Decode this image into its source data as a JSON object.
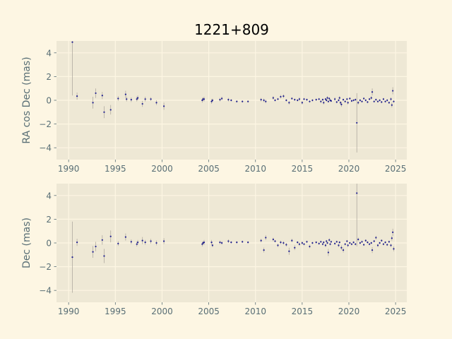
{
  "chart_data": {
    "type": "scatter",
    "title": "1221+809",
    "style": {
      "figure_bg": "#fdf6e3",
      "axes_bg": "#eee8d5",
      "grid": "#fdf6e3",
      "point": "#1f1f8f",
      "errorbar": "#b0aaa0",
      "text": "#586e75"
    },
    "grid": true,
    "xlim": [
      1988.7,
      2026.2
    ],
    "xticks": [
      1990,
      1995,
      2000,
      2005,
      2010,
      2015,
      2020,
      2025
    ],
    "panels": [
      {
        "ylabel": "RA cos Dec (mas)",
        "ylim": [
          -5,
          5
        ],
        "yticks": [
          -4,
          -2,
          0,
          2,
          4
        ],
        "points": [
          [
            1990.4,
            4.9,
            4.5
          ],
          [
            1990.9,
            0.35,
            0.3
          ],
          [
            1992.6,
            -0.2,
            0.5
          ],
          [
            1992.9,
            0.6,
            0.4
          ],
          [
            1993.6,
            0.4,
            0.3
          ],
          [
            1993.8,
            -1.0,
            0.5
          ],
          [
            1994.5,
            -0.8,
            0.4
          ],
          [
            1995.3,
            0.15,
            0.2
          ],
          [
            1996.1,
            0.5,
            0.3
          ],
          [
            1996.2,
            0.1,
            0.2
          ],
          [
            1996.7,
            0.05,
            0.2
          ],
          [
            1997.3,
            0.1,
            0.2
          ],
          [
            1997.4,
            0.2,
            0.2
          ],
          [
            1997.9,
            -0.3,
            0.25
          ],
          [
            1998.2,
            0.1,
            0.2
          ],
          [
            1998.8,
            0.1,
            0.15
          ],
          [
            1999.4,
            -0.2,
            0.2
          ],
          [
            2000.2,
            -0.5,
            0.3
          ],
          [
            2004.3,
            0.0,
            0.2
          ],
          [
            2004.4,
            0.1,
            0.15
          ],
          [
            2004.5,
            0.1,
            0.2
          ],
          [
            2005.3,
            -0.1,
            0.2
          ],
          [
            2005.4,
            0.0,
            0.15
          ],
          [
            2006.2,
            0.05,
            0.15
          ],
          [
            2006.4,
            0.15,
            0.15
          ],
          [
            2007.1,
            0.05,
            0.15
          ],
          [
            2007.4,
            0.0,
            0.1
          ],
          [
            2008.0,
            -0.1,
            0.1
          ],
          [
            2008.6,
            -0.1,
            0.1
          ],
          [
            2009.2,
            -0.1,
            0.1
          ],
          [
            2010.6,
            0.05,
            0.15
          ],
          [
            2010.9,
            0.0,
            0.15
          ],
          [
            2011.1,
            -0.1,
            0.15
          ],
          [
            2011.9,
            0.2,
            0.15
          ],
          [
            2012.1,
            0.0,
            0.1
          ],
          [
            2012.4,
            0.1,
            0.1
          ],
          [
            2012.7,
            0.3,
            0.15
          ],
          [
            2013.0,
            0.35,
            0.15
          ],
          [
            2013.3,
            0.0,
            0.1
          ],
          [
            2013.6,
            -0.2,
            0.15
          ],
          [
            2013.9,
            0.15,
            0.1
          ],
          [
            2014.2,
            0.05,
            0.1
          ],
          [
            2014.5,
            0.0,
            0.1
          ],
          [
            2014.7,
            0.1,
            0.15
          ],
          [
            2015.0,
            -0.2,
            0.15
          ],
          [
            2015.2,
            0.1,
            0.1
          ],
          [
            2015.5,
            0.05,
            0.1
          ],
          [
            2015.8,
            -0.1,
            0.1
          ],
          [
            2016.1,
            0.0,
            0.1
          ],
          [
            2016.5,
            0.05,
            0.1
          ],
          [
            2016.8,
            0.1,
            0.1
          ],
          [
            2017.0,
            -0.1,
            0.15
          ],
          [
            2017.2,
            0.05,
            0.1
          ],
          [
            2017.3,
            -0.2,
            0.15
          ],
          [
            2017.5,
            0.1,
            0.1
          ],
          [
            2017.6,
            0.0,
            0.1
          ],
          [
            2017.7,
            0.2,
            0.15
          ],
          [
            2017.8,
            -0.1,
            0.1
          ],
          [
            2017.9,
            0.15,
            0.1
          ],
          [
            2018.0,
            0.0,
            0.1
          ],
          [
            2018.1,
            -0.05,
            0.1
          ],
          [
            2018.5,
            0.1,
            0.15
          ],
          [
            2018.7,
            -0.15,
            0.1
          ],
          [
            2018.9,
            0.0,
            0.1
          ],
          [
            2019.0,
            0.2,
            0.15
          ],
          [
            2019.1,
            -0.2,
            0.15
          ],
          [
            2019.2,
            -0.35,
            0.2
          ],
          [
            2019.4,
            0.05,
            0.1
          ],
          [
            2019.6,
            -0.1,
            0.1
          ],
          [
            2019.8,
            0.1,
            0.1
          ],
          [
            2019.9,
            -0.2,
            0.15
          ],
          [
            2020.1,
            0.15,
            0.1
          ],
          [
            2020.3,
            -0.05,
            0.1
          ],
          [
            2020.5,
            0.0,
            0.1
          ],
          [
            2020.7,
            0.05,
            0.1
          ],
          [
            2020.85,
            -1.9,
            2.5
          ],
          [
            2021.0,
            -0.2,
            0.15
          ],
          [
            2021.2,
            0.0,
            0.1
          ],
          [
            2021.4,
            -0.1,
            0.1
          ],
          [
            2021.6,
            0.15,
            0.1
          ],
          [
            2021.8,
            0.0,
            0.1
          ],
          [
            2022.0,
            -0.15,
            0.1
          ],
          [
            2022.2,
            0.1,
            0.1
          ],
          [
            2022.4,
            0.2,
            0.15
          ],
          [
            2022.5,
            0.7,
            0.3
          ],
          [
            2022.7,
            -0.1,
            0.1
          ],
          [
            2022.9,
            0.05,
            0.1
          ],
          [
            2023.1,
            -0.1,
            0.1
          ],
          [
            2023.3,
            0.0,
            0.1
          ],
          [
            2023.5,
            -0.15,
            0.1
          ],
          [
            2023.7,
            0.1,
            0.1
          ],
          [
            2023.9,
            -0.1,
            0.1
          ],
          [
            2024.1,
            0.0,
            0.1
          ],
          [
            2024.3,
            -0.2,
            0.1
          ],
          [
            2024.5,
            0.1,
            0.15
          ],
          [
            2024.6,
            -0.4,
            0.2
          ],
          [
            2024.7,
            0.8,
            0.3
          ],
          [
            2024.8,
            -0.1,
            0.1
          ]
        ]
      },
      {
        "ylabel": "Dec (mas)",
        "ylim": [
          -5,
          5
        ],
        "yticks": [
          -4,
          -2,
          0,
          2,
          4
        ],
        "points": [
          [
            1990.4,
            -1.2,
            3.0
          ],
          [
            1990.9,
            0.05,
            0.3
          ],
          [
            1992.6,
            -0.75,
            0.5
          ],
          [
            1992.9,
            -0.3,
            0.4
          ],
          [
            1993.6,
            0.25,
            0.4
          ],
          [
            1993.8,
            -1.1,
            0.6
          ],
          [
            1994.5,
            0.55,
            0.5
          ],
          [
            1995.3,
            -0.05,
            0.2
          ],
          [
            1996.1,
            0.5,
            0.3
          ],
          [
            1996.7,
            0.1,
            0.2
          ],
          [
            1997.3,
            -0.1,
            0.2
          ],
          [
            1997.4,
            0.05,
            0.2
          ],
          [
            1997.9,
            0.2,
            0.3
          ],
          [
            1998.2,
            0.05,
            0.2
          ],
          [
            1998.8,
            0.15,
            0.2
          ],
          [
            1999.4,
            0.0,
            0.2
          ],
          [
            2000.2,
            0.15,
            0.25
          ],
          [
            2004.3,
            -0.1,
            0.2
          ],
          [
            2004.4,
            0.0,
            0.15
          ],
          [
            2004.5,
            0.05,
            0.2
          ],
          [
            2005.3,
            0.05,
            0.2
          ],
          [
            2005.4,
            -0.2,
            0.15
          ],
          [
            2006.2,
            0.05,
            0.15
          ],
          [
            2006.4,
            0.0,
            0.15
          ],
          [
            2007.1,
            0.15,
            0.15
          ],
          [
            2007.4,
            0.05,
            0.1
          ],
          [
            2008.0,
            0.05,
            0.1
          ],
          [
            2008.6,
            0.1,
            0.1
          ],
          [
            2009.2,
            0.05,
            0.1
          ],
          [
            2010.6,
            0.2,
            0.15
          ],
          [
            2010.9,
            -0.6,
            0.2
          ],
          [
            2011.1,
            0.45,
            0.2
          ],
          [
            2011.9,
            0.3,
            0.15
          ],
          [
            2012.1,
            0.15,
            0.1
          ],
          [
            2012.4,
            -0.2,
            0.15
          ],
          [
            2012.7,
            0.05,
            0.15
          ],
          [
            2013.0,
            0.0,
            0.15
          ],
          [
            2013.3,
            -0.15,
            0.15
          ],
          [
            2013.6,
            -0.7,
            0.3
          ],
          [
            2013.9,
            0.2,
            0.15
          ],
          [
            2014.2,
            -0.4,
            0.2
          ],
          [
            2014.5,
            0.05,
            0.1
          ],
          [
            2014.7,
            -0.1,
            0.15
          ],
          [
            2015.0,
            0.0,
            0.15
          ],
          [
            2015.2,
            -0.1,
            0.1
          ],
          [
            2015.5,
            0.1,
            0.1
          ],
          [
            2015.8,
            -0.3,
            0.15
          ],
          [
            2016.1,
            0.0,
            0.1
          ],
          [
            2016.5,
            0.05,
            0.1
          ],
          [
            2016.8,
            -0.05,
            0.1
          ],
          [
            2017.0,
            0.1,
            0.1
          ],
          [
            2017.2,
            -0.1,
            0.1
          ],
          [
            2017.3,
            0.05,
            0.1
          ],
          [
            2017.5,
            -0.2,
            0.15
          ],
          [
            2017.6,
            0.15,
            0.1
          ],
          [
            2017.7,
            0.0,
            0.1
          ],
          [
            2017.8,
            -0.8,
            0.3
          ],
          [
            2017.9,
            0.25,
            0.15
          ],
          [
            2018.0,
            -0.1,
            0.1
          ],
          [
            2018.1,
            0.1,
            0.1
          ],
          [
            2018.5,
            -0.05,
            0.1
          ],
          [
            2018.7,
            0.1,
            0.1
          ],
          [
            2018.9,
            -0.2,
            0.15
          ],
          [
            2019.0,
            0.05,
            0.1
          ],
          [
            2019.2,
            -0.4,
            0.2
          ],
          [
            2019.4,
            -0.6,
            0.2
          ],
          [
            2019.6,
            -0.1,
            0.1
          ],
          [
            2019.8,
            0.15,
            0.1
          ],
          [
            2019.9,
            -0.2,
            0.15
          ],
          [
            2020.1,
            0.0,
            0.1
          ],
          [
            2020.3,
            -0.1,
            0.1
          ],
          [
            2020.5,
            0.05,
            0.1
          ],
          [
            2020.7,
            -0.1,
            0.1
          ],
          [
            2020.85,
            4.2,
            4.5
          ],
          [
            2021.0,
            0.3,
            0.15
          ],
          [
            2021.2,
            0.0,
            0.1
          ],
          [
            2021.4,
            0.1,
            0.1
          ],
          [
            2021.6,
            -0.15,
            0.1
          ],
          [
            2021.8,
            0.2,
            0.1
          ],
          [
            2022.0,
            0.05,
            0.1
          ],
          [
            2022.2,
            -0.1,
            0.1
          ],
          [
            2022.4,
            0.0,
            0.1
          ],
          [
            2022.5,
            -0.6,
            0.25
          ],
          [
            2022.7,
            0.15,
            0.1
          ],
          [
            2022.9,
            0.45,
            0.15
          ],
          [
            2023.1,
            -0.2,
            0.15
          ],
          [
            2023.3,
            0.0,
            0.1
          ],
          [
            2023.5,
            0.2,
            0.1
          ],
          [
            2023.7,
            -0.1,
            0.1
          ],
          [
            2023.9,
            0.05,
            0.1
          ],
          [
            2024.1,
            -0.15,
            0.1
          ],
          [
            2024.3,
            0.1,
            0.1
          ],
          [
            2024.5,
            -0.2,
            0.15
          ],
          [
            2024.6,
            0.4,
            0.2
          ],
          [
            2024.7,
            0.9,
            0.3
          ],
          [
            2024.8,
            -0.5,
            0.2
          ]
        ]
      }
    ]
  }
}
